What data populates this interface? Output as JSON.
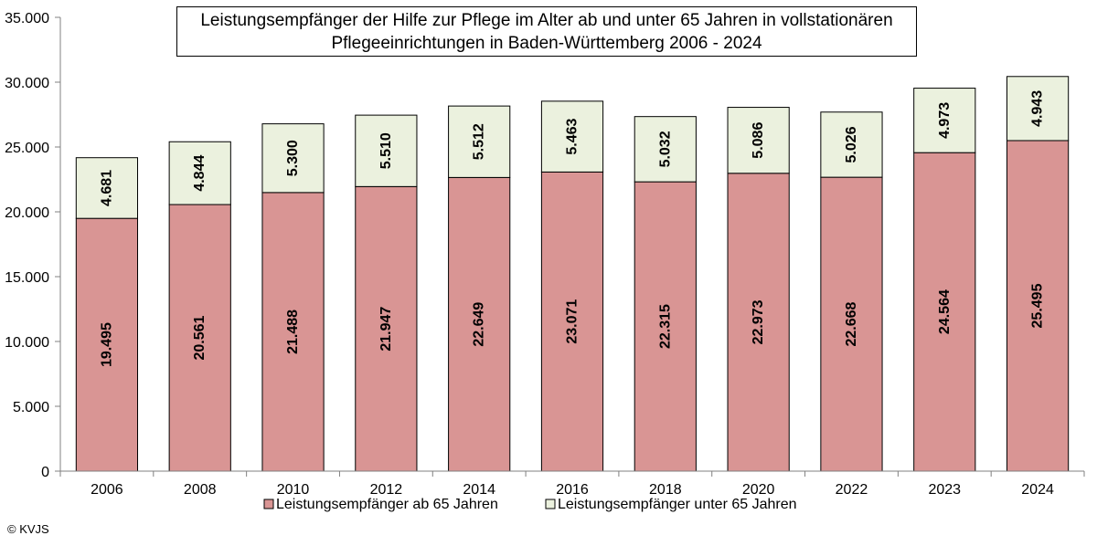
{
  "chart_data": {
    "type": "bar",
    "stacked": true,
    "title_line1": "Leistungsempfänger der Hilfe zur Pflege im Alter ab und unter 65 Jahren in vollstationären",
    "title_line2": "Pflegeeinrichtungen in Baden-Württemberg 2006 - 2024",
    "categories": [
      "2006",
      "2008",
      "2010",
      "2012",
      "2014",
      "2016",
      "2018",
      "2020",
      "2022",
      "2023",
      "2024"
    ],
    "series": [
      {
        "name": "Leistungsempfänger ab 65 Jahren",
        "color": "#d99594",
        "values": [
          19495,
          20561,
          21488,
          21947,
          22649,
          23071,
          22315,
          22973,
          22668,
          24564,
          25495
        ],
        "labels": [
          "19.495",
          "20.561",
          "21.488",
          "21.947",
          "22.649",
          "23.071",
          "22.315",
          "22.973",
          "22.668",
          "24.564",
          "25.495"
        ]
      },
      {
        "name": "Leistungsempfänger unter 65 Jahren",
        "color": "#ebf1de",
        "values": [
          4681,
          4844,
          5300,
          5510,
          5512,
          5463,
          5032,
          5086,
          5026,
          4973,
          4943
        ],
        "labels": [
          "4.681",
          "4.844",
          "5.300",
          "5.510",
          "5.512",
          "5.463",
          "5.032",
          "5.086",
          "5.026",
          "4.973",
          "4.943"
        ]
      }
    ],
    "ylim": [
      0,
      35000
    ],
    "yticks": [
      0,
      5000,
      10000,
      15000,
      20000,
      25000,
      30000,
      35000
    ],
    "ytick_labels": [
      "0",
      "5.000",
      "10.000",
      "15.000",
      "20.000",
      "25.000",
      "30.000",
      "35.000"
    ],
    "grid": false,
    "legend_position": "bottom"
  },
  "copyright": "© KVJS"
}
